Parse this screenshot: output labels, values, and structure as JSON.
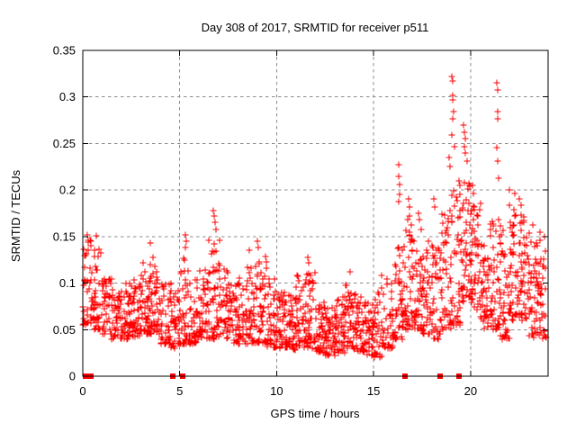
{
  "window": {
    "title": "Day 308 of 2017, SRMTID for receiver p511"
  },
  "chart_data": {
    "type": "scatter",
    "title": "Day 308 of 2017, SRMTID for receiver p511",
    "xlabel": "GPS time / hours",
    "ylabel": "SRMTID / TECUs",
    "xlim": [
      0,
      24
    ],
    "ylim": [
      0,
      0.35
    ],
    "xticks": [
      0,
      5,
      10,
      15,
      20
    ],
    "xtick_labels": [
      "0",
      "5",
      "10",
      "15",
      "20"
    ],
    "yticks": [
      0,
      0.05,
      0.1,
      0.15,
      0.2,
      0.25,
      0.3,
      0.35
    ],
    "ytick_labels": [
      "0",
      "0.05",
      "0.1",
      "0.15",
      "0.2",
      "0.25",
      "0.3",
      "0.35"
    ],
    "grid": true,
    "grid_color": "#8c8c8c",
    "legend": "none",
    "background_color": "#ffffff",
    "axis_color": "#000000",
    "marker": {
      "shape": "plus",
      "color": "#ff0000",
      "size": 7
    },
    "series_name": "SRMTID",
    "density_bins_format": [
      "x_start_hour",
      "x_end_hour",
      "point_count",
      "y_low",
      "y_median",
      "y_high"
    ],
    "density_bins": [
      [
        0.0,
        0.5,
        42,
        0.055,
        0.085,
        0.148
      ],
      [
        0.5,
        1.0,
        40,
        0.05,
        0.078,
        0.138
      ],
      [
        1.0,
        1.5,
        40,
        0.045,
        0.065,
        0.105
      ],
      [
        1.5,
        2.0,
        45,
        0.04,
        0.06,
        0.095
      ],
      [
        2.0,
        2.5,
        45,
        0.04,
        0.062,
        0.1
      ],
      [
        2.5,
        3.0,
        45,
        0.042,
        0.065,
        0.105
      ],
      [
        3.0,
        3.5,
        45,
        0.045,
        0.07,
        0.125
      ],
      [
        3.5,
        4.0,
        45,
        0.045,
        0.072,
        0.122
      ],
      [
        4.0,
        4.5,
        40,
        0.035,
        0.06,
        0.1
      ],
      [
        4.5,
        5.0,
        40,
        0.03,
        0.055,
        0.1
      ],
      [
        5.0,
        5.5,
        42,
        0.035,
        0.062,
        0.132
      ],
      [
        5.5,
        6.0,
        40,
        0.035,
        0.06,
        0.11
      ],
      [
        6.0,
        6.5,
        40,
        0.04,
        0.065,
        0.115
      ],
      [
        6.5,
        7.0,
        42,
        0.04,
        0.07,
        0.15
      ],
      [
        7.0,
        7.5,
        40,
        0.04,
        0.068,
        0.13
      ],
      [
        7.5,
        8.0,
        40,
        0.035,
        0.06,
        0.1
      ],
      [
        8.0,
        8.5,
        40,
        0.035,
        0.06,
        0.11
      ],
      [
        8.5,
        9.0,
        40,
        0.035,
        0.065,
        0.12
      ],
      [
        9.0,
        9.5,
        42,
        0.035,
        0.065,
        0.13
      ],
      [
        9.5,
        10.0,
        42,
        0.03,
        0.06,
        0.11
      ],
      [
        10.0,
        10.5,
        45,
        0.03,
        0.055,
        0.095
      ],
      [
        10.5,
        11.0,
        45,
        0.028,
        0.05,
        0.09
      ],
      [
        11.0,
        11.5,
        45,
        0.03,
        0.06,
        0.11
      ],
      [
        11.5,
        12.0,
        45,
        0.03,
        0.058,
        0.115
      ],
      [
        12.0,
        12.5,
        48,
        0.025,
        0.045,
        0.08
      ],
      [
        12.5,
        13.0,
        48,
        0.022,
        0.042,
        0.075
      ],
      [
        13.0,
        13.5,
        45,
        0.025,
        0.045,
        0.085
      ],
      [
        13.5,
        14.0,
        42,
        0.03,
        0.05,
        0.1
      ],
      [
        14.0,
        14.5,
        42,
        0.025,
        0.048,
        0.09
      ],
      [
        14.5,
        15.0,
        40,
        0.022,
        0.045,
        0.08
      ],
      [
        15.0,
        15.5,
        40,
        0.02,
        0.045,
        0.095
      ],
      [
        15.5,
        16.0,
        40,
        0.03,
        0.055,
        0.11
      ],
      [
        16.0,
        16.5,
        40,
        0.04,
        0.07,
        0.14
      ],
      [
        16.5,
        17.0,
        45,
        0.05,
        0.09,
        0.175
      ],
      [
        17.0,
        17.5,
        45,
        0.05,
        0.085,
        0.16
      ],
      [
        17.5,
        18.0,
        42,
        0.045,
        0.08,
        0.145
      ],
      [
        18.0,
        18.5,
        42,
        0.04,
        0.075,
        0.14
      ],
      [
        18.5,
        19.0,
        42,
        0.05,
        0.09,
        0.185
      ],
      [
        19.0,
        19.5,
        45,
        0.055,
        0.1,
        0.2
      ],
      [
        19.5,
        20.0,
        48,
        0.08,
        0.13,
        0.21
      ],
      [
        20.0,
        20.5,
        48,
        0.07,
        0.12,
        0.185
      ],
      [
        20.5,
        21.0,
        45,
        0.05,
        0.09,
        0.15
      ],
      [
        21.0,
        21.5,
        45,
        0.05,
        0.09,
        0.17
      ],
      [
        21.5,
        22.0,
        45,
        0.04,
        0.08,
        0.165
      ],
      [
        22.0,
        22.5,
        48,
        0.06,
        0.11,
        0.185
      ],
      [
        22.5,
        23.0,
        48,
        0.06,
        0.105,
        0.175
      ],
      [
        23.0,
        23.5,
        45,
        0.04,
        0.09,
        0.155
      ],
      [
        23.5,
        23.9,
        35,
        0.04,
        0.085,
        0.148
      ]
    ],
    "outlier_points": [
      [
        0.25,
        0.152
      ],
      [
        0.3,
        0.146
      ],
      [
        0.7,
        0.151
      ],
      [
        3.5,
        0.143
      ],
      [
        3.6,
        0.128
      ],
      [
        5.3,
        0.152
      ],
      [
        5.32,
        0.145
      ],
      [
        5.28,
        0.138
      ],
      [
        6.75,
        0.178
      ],
      [
        6.78,
        0.172
      ],
      [
        6.82,
        0.165
      ],
      [
        6.85,
        0.158
      ],
      [
        7.05,
        0.146
      ],
      [
        8.6,
        0.135
      ],
      [
        9.0,
        0.145
      ],
      [
        9.05,
        0.138
      ],
      [
        11.6,
        0.128
      ],
      [
        11.65,
        0.122
      ],
      [
        13.8,
        0.112
      ],
      [
        15.4,
        0.108
      ],
      [
        16.3,
        0.227
      ],
      [
        16.31,
        0.215
      ],
      [
        16.33,
        0.206
      ],
      [
        16.35,
        0.195
      ],
      [
        16.3,
        0.188
      ],
      [
        16.8,
        0.19
      ],
      [
        16.85,
        0.182
      ],
      [
        17.3,
        0.175
      ],
      [
        17.35,
        0.168
      ],
      [
        18.1,
        0.19
      ],
      [
        18.15,
        0.182
      ],
      [
        18.9,
        0.235
      ],
      [
        18.95,
        0.225
      ],
      [
        19.05,
        0.322
      ],
      [
        19.1,
        0.317
      ],
      [
        19.08,
        0.302
      ],
      [
        19.1,
        0.297
      ],
      [
        19.12,
        0.284
      ],
      [
        19.1,
        0.277
      ],
      [
        19.05,
        0.259
      ],
      [
        19.15,
        0.247
      ],
      [
        19.4,
        0.21
      ],
      [
        19.45,
        0.205
      ],
      [
        19.65,
        0.27
      ],
      [
        19.7,
        0.262
      ],
      [
        19.72,
        0.255
      ],
      [
        19.68,
        0.247
      ],
      [
        19.75,
        0.24
      ],
      [
        19.8,
        0.231
      ],
      [
        20.1,
        0.205
      ],
      [
        20.15,
        0.196
      ],
      [
        20.5,
        0.186
      ],
      [
        21.35,
        0.315
      ],
      [
        21.38,
        0.307
      ],
      [
        21.4,
        0.284
      ],
      [
        21.42,
        0.277
      ],
      [
        21.36,
        0.246
      ],
      [
        21.4,
        0.231
      ],
      [
        21.45,
        0.213
      ],
      [
        22.0,
        0.2
      ],
      [
        22.3,
        0.196
      ],
      [
        22.5,
        0.19
      ],
      [
        22.6,
        0.184
      ],
      [
        23.2,
        0.162
      ],
      [
        23.6,
        0.155
      ],
      [
        23.8,
        0.15
      ]
    ],
    "zero_value_points": [
      0.15,
      0.4,
      4.65,
      5.15,
      16.6,
      18.45,
      19.4
    ]
  }
}
